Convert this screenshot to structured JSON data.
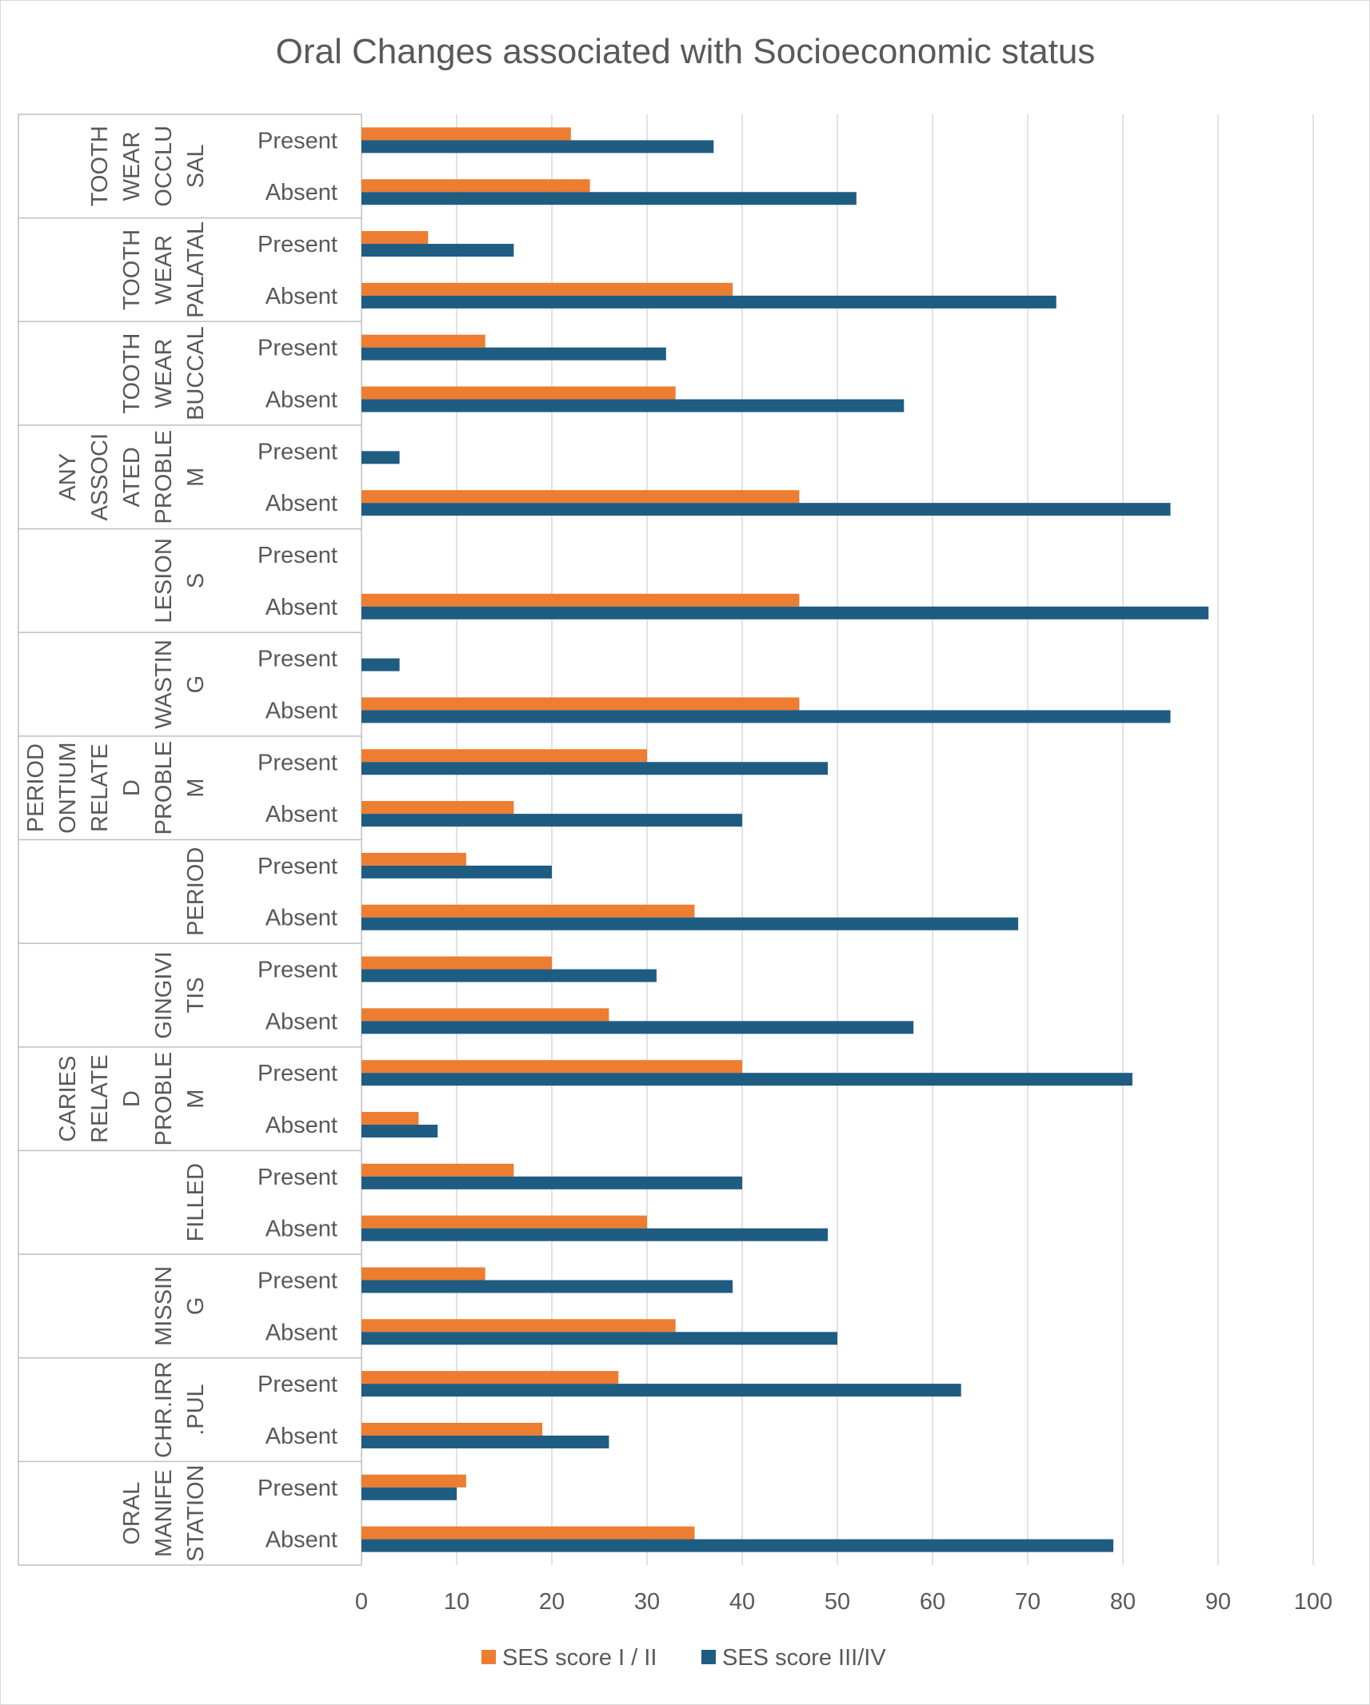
{
  "chart_data": {
    "type": "bar",
    "orientation": "horizontal",
    "title": "Oral Changes associated with Socioeconomic status",
    "xlabel": "",
    "ylabel": "",
    "xlim": [
      0,
      100
    ],
    "xticks": [
      0,
      10,
      20,
      30,
      40,
      50,
      60,
      70,
      80,
      90,
      100
    ],
    "grid": "vertical",
    "legend_position": "bottom",
    "groups": [
      {
        "lines": [
          "TOOTH",
          "WEAR",
          "OCCLU",
          "SAL"
        ],
        "categories": [
          "Present",
          "Absent"
        ]
      },
      {
        "lines": [
          "TOOTH",
          "WEAR",
          "PALATAL"
        ],
        "categories": [
          "Present",
          "Absent"
        ]
      },
      {
        "lines": [
          "TOOTH",
          "WEAR",
          "BUCCAL"
        ],
        "categories": [
          "Present",
          "Absent"
        ]
      },
      {
        "lines": [
          "ANY",
          "ASSOCI",
          "ATED",
          "PROBLE",
          "M"
        ],
        "categories": [
          "Present",
          "Absent"
        ]
      },
      {
        "lines": [
          "LESION",
          "S"
        ],
        "categories": [
          "Present",
          "Absent"
        ]
      },
      {
        "lines": [
          "WASTIN",
          "G"
        ],
        "categories": [
          "Present",
          "Absent"
        ]
      },
      {
        "lines": [
          "PERIOD",
          "ONTIUM",
          "RELATE",
          "D",
          "PROBLE",
          "M"
        ],
        "categories": [
          "Present",
          "Absent"
        ]
      },
      {
        "lines": [
          "PERIOD"
        ],
        "categories": [
          "Present",
          "Absent"
        ]
      },
      {
        "lines": [
          "GINGIVI",
          "TIS"
        ],
        "categories": [
          "Present",
          "Absent"
        ]
      },
      {
        "lines": [
          "CARIES",
          "RELATE",
          "D",
          "PROBLE",
          "M"
        ],
        "categories": [
          "Present",
          "Absent"
        ]
      },
      {
        "lines": [
          "FILLED"
        ],
        "categories": [
          "Present",
          "Absent"
        ]
      },
      {
        "lines": [
          "MISSIN",
          "G"
        ],
        "categories": [
          "Present",
          "Absent"
        ]
      },
      {
        "lines": [
          "CHR.IRR",
          ".PUL"
        ],
        "categories": [
          "Present",
          "Absent"
        ]
      },
      {
        "lines": [
          "ORAL",
          "MANIFE",
          "STATION"
        ],
        "categories": [
          "Present",
          "Absent"
        ]
      }
    ],
    "series": [
      {
        "name": "SES score I / II",
        "color": "#ED7D31",
        "values": [
          22,
          24,
          7,
          39,
          13,
          33,
          0,
          46,
          0,
          46,
          0,
          46,
          30,
          16,
          11,
          35,
          20,
          26,
          40,
          6,
          16,
          30,
          13,
          33,
          27,
          19,
          11,
          35
        ]
      },
      {
        "name": "SES score III/IV",
        "color": "#1F5C82",
        "values": [
          37,
          52,
          16,
          73,
          32,
          57,
          4,
          85,
          0,
          89,
          4,
          85,
          49,
          40,
          20,
          69,
          31,
          58,
          81,
          8,
          40,
          49,
          39,
          50,
          63,
          26,
          10,
          79
        ]
      }
    ]
  }
}
